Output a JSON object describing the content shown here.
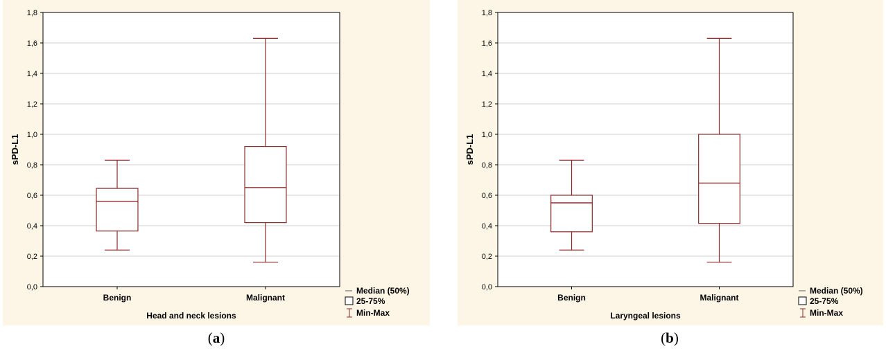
{
  "colors": {
    "panel_background": "#fdf6e6",
    "plot_background": "#ffffff",
    "box_color": "#8b2a2a",
    "grid_color": "#cfcfcf"
  },
  "chart_data": [
    {
      "type": "boxplot",
      "ylabel": "sPD-L1",
      "xlabel": "Head and neck lesions",
      "ylim": [
        0,
        1.8
      ],
      "yticks": [
        "0,0",
        "0,2",
        "0,4",
        "0,6",
        "0,8",
        "1,0",
        "1,2",
        "1,4",
        "1,6",
        "1,8"
      ],
      "grid": true,
      "categories": [
        "Benign",
        "Malignant"
      ],
      "boxes": [
        {
          "category": "Benign",
          "min": 0.24,
          "q1": 0.365,
          "median": 0.56,
          "q3": 0.645,
          "max": 0.83
        },
        {
          "category": "Malignant",
          "min": 0.16,
          "q1": 0.42,
          "median": 0.65,
          "q3": 0.92,
          "max": 1.63
        }
      ],
      "legend": {
        "position": "bottom-right",
        "median": "Median (50%)",
        "box": "25-75%",
        "whisker": "Min-Max"
      },
      "caption_letter": "a"
    },
    {
      "type": "boxplot",
      "ylabel": "sPD-L1",
      "xlabel": "Laryngeal lesions",
      "ylim": [
        0,
        1.8
      ],
      "yticks": [
        "0,0",
        "0,2",
        "0,4",
        "0,6",
        "0,8",
        "1,0",
        "1,2",
        "1,4",
        "1,6",
        "1,8"
      ],
      "grid": true,
      "categories": [
        "Benign",
        "Malignant"
      ],
      "boxes": [
        {
          "category": "Benign",
          "min": 0.24,
          "q1": 0.36,
          "median": 0.55,
          "q3": 0.6,
          "max": 0.83
        },
        {
          "category": "Malignant",
          "min": 0.16,
          "q1": 0.415,
          "median": 0.68,
          "q3": 1.0,
          "max": 1.63
        }
      ],
      "legend": {
        "position": "bottom-right",
        "median": "Median (50%)",
        "box": "25-75%",
        "whisker": "Min-Max"
      },
      "caption_letter": "b"
    }
  ]
}
